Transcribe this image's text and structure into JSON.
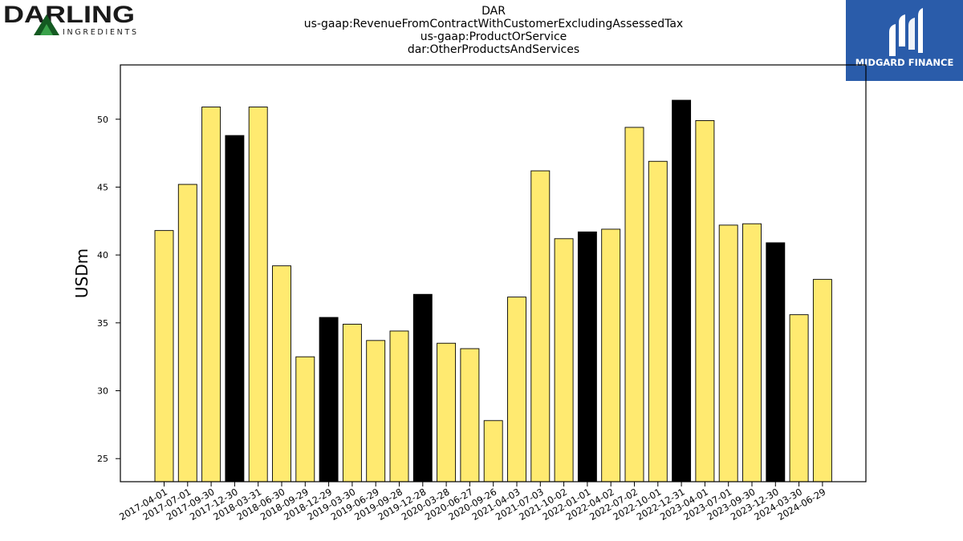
{
  "header": {
    "title_lines": [
      "DAR",
      "us-gaap:RevenueFromContractWithCustomerExcludingAssessedTax",
      "us-gaap:ProductOrService",
      "dar:OtherProductsAndServices"
    ]
  },
  "logos": {
    "left": {
      "word": "DARLING",
      "subword": "INGREDIENTS",
      "color": "#1a1a1a",
      "triangle_color": "#1f7a2e"
    },
    "right": {
      "word": "MIDGARD FINANCE",
      "background": "#2a5caa",
      "color": "#ffffff"
    }
  },
  "chart_data": {
    "type": "bar",
    "title": "",
    "xlabel": "",
    "ylabel": "USDm",
    "ylim": [
      23.3,
      54.0
    ],
    "yticks": [
      25,
      30,
      35,
      40,
      45,
      50
    ],
    "grid": false,
    "legend": "none",
    "categories": [
      "2017-04-01",
      "2017-07-01",
      "2017-09-30",
      "2017-12-30",
      "2018-03-31",
      "2018-06-30",
      "2018-09-29",
      "2018-12-29",
      "2019-03-30",
      "2019-06-29",
      "2019-09-28",
      "2019-12-28",
      "2020-03-28",
      "2020-06-27",
      "2020-09-26",
      "2021-04-03",
      "2021-07-03",
      "2021-10-02",
      "2022-01-01",
      "2022-04-02",
      "2022-07-02",
      "2022-10-01",
      "2022-12-31",
      "2023-04-01",
      "2023-07-01",
      "2023-09-30",
      "2023-12-30",
      "2024-03-30",
      "2024-06-29"
    ],
    "values": [
      41.8,
      45.2,
      50.9,
      48.8,
      50.9,
      39.2,
      32.5,
      35.4,
      34.9,
      33.7,
      34.4,
      37.1,
      33.5,
      33.1,
      27.8,
      36.9,
      46.2,
      41.2,
      41.7,
      41.9,
      49.4,
      46.9,
      51.4,
      49.9,
      42.2,
      42.3,
      40.9,
      35.6,
      38.2
    ],
    "highlighted": [
      false,
      false,
      false,
      true,
      false,
      false,
      false,
      true,
      false,
      false,
      false,
      true,
      false,
      false,
      false,
      false,
      false,
      false,
      true,
      false,
      false,
      false,
      true,
      false,
      false,
      false,
      true,
      false,
      false
    ],
    "colors": {
      "bar": "#ffea70",
      "highlight": "#000000",
      "edge": "#000000"
    }
  }
}
